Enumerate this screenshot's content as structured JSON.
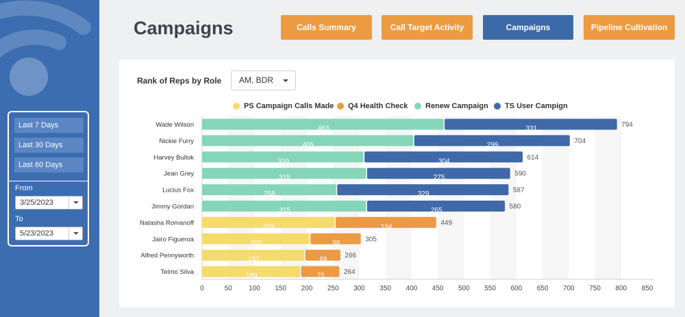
{
  "page": {
    "title": "Campaigns"
  },
  "nav": [
    {
      "label": "Calls Summary",
      "active": false
    },
    {
      "label": "Call Target Activity",
      "active": false
    },
    {
      "label": "Campaigns",
      "active": true
    },
    {
      "label": "Pipeline Cultivation",
      "active": false
    }
  ],
  "sidebar": {
    "ranges": [
      "Last 7 Days",
      "Last 30 Days",
      "Last 60 Days"
    ],
    "from_label": "From",
    "from_value": "3/25/2023",
    "to_label": "To",
    "to_value": "5/23/2023"
  },
  "filter": {
    "label": "Rank of Reps by Role",
    "selected": "AM, BDR"
  },
  "colors": {
    "ps": "#f5dc6a",
    "q4": "#ec9a44",
    "renew": "#85d6b9",
    "ts": "#3f69a8"
  },
  "chart_data": {
    "type": "bar",
    "orientation": "horizontal",
    "stacked": true,
    "categories": [
      "Wade Wilson",
      "Nickie Furry",
      "Harvey Bullok",
      "Jean Grey",
      "Lucius Fox",
      "Jimmy Gordan",
      "Natasha Romanoff",
      "Jairo Figueroa",
      "Alfred Pennyworth",
      "Telmo Silva"
    ],
    "series": [
      {
        "name": "PS Campaign Calls Made",
        "color": "#f5dc6a",
        "values": [
          0,
          0,
          0,
          0,
          0,
          0,
          255,
          207,
          197,
          189
        ]
      },
      {
        "name": "Q4 Health Check",
        "color": "#ec9a44",
        "values": [
          0,
          0,
          0,
          0,
          0,
          0,
          194,
          98,
          69,
          75
        ]
      },
      {
        "name": "Renew Campaign",
        "color": "#85d6b9",
        "values": [
          463,
          405,
          310,
          315,
          258,
          315,
          0,
          0,
          0,
          0
        ]
      },
      {
        "name": "TS User Campign",
        "color": "#3f69a8",
        "values": [
          331,
          299,
          304,
          275,
          329,
          265,
          0,
          0,
          0,
          0
        ]
      }
    ],
    "totals": [
      794,
      704,
      614,
      590,
      587,
      580,
      449,
      305,
      266,
      264
    ],
    "x_ticks": [
      0,
      50,
      100,
      150,
      200,
      250,
      300,
      350,
      400,
      450,
      500,
      550,
      600,
      650,
      700,
      750,
      800,
      850
    ],
    "xlim": [
      0,
      850
    ],
    "legend_position": "top",
    "grid": true
  }
}
